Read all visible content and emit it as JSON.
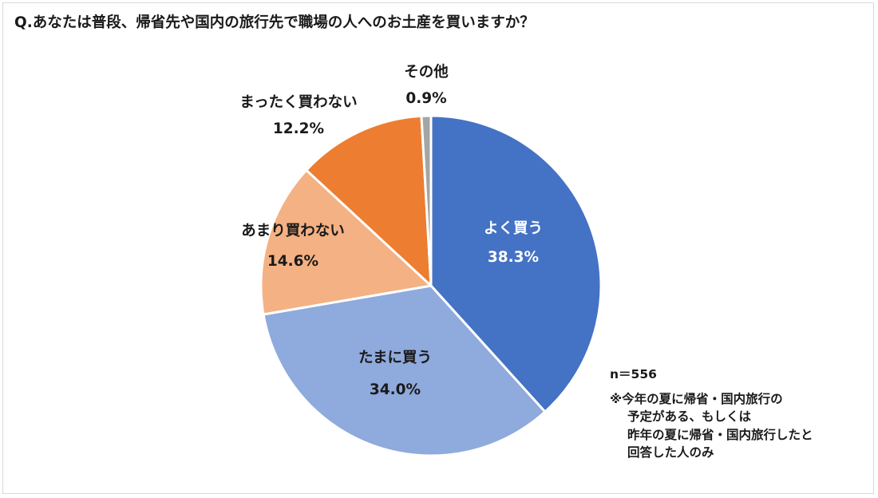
{
  "title": "Q.あなたは普段、帰省先や国内の旅行先で職場の人へのお土産を買いますか？",
  "note": {
    "n": "n＝556",
    "lines": [
      "※今年の夏に帰省・国内旅行の",
      "予定がある、もしくは",
      "昨年の夏に帰省・国内旅行したと",
      "回答した人のみ"
    ]
  },
  "chart_data": {
    "type": "pie",
    "start": "top",
    "direction": "clockwise",
    "slices": [
      {
        "label": "よく買う",
        "value": 38.3,
        "value_label": "38.3%",
        "color": "#4472c4",
        "label_color": "#ffffff"
      },
      {
        "label": "たまに買う",
        "value": 34.0,
        "value_label": "34.0%",
        "color": "#8faadc",
        "label_color": "#1a1a1a"
      },
      {
        "label": "あまり買わない",
        "value": 14.6,
        "value_label": "14.6%",
        "color": "#f4b183",
        "label_color": "#1a1a1a"
      },
      {
        "label": "まったく買わない",
        "value": 12.2,
        "value_label": "12.2%",
        "color": "#ed7d31",
        "label_color": "#1a1a1a"
      },
      {
        "label": "その他",
        "value": 0.9,
        "value_label": "0.9%",
        "color": "#a5a5a5",
        "label_color": "#1a1a1a"
      }
    ]
  }
}
